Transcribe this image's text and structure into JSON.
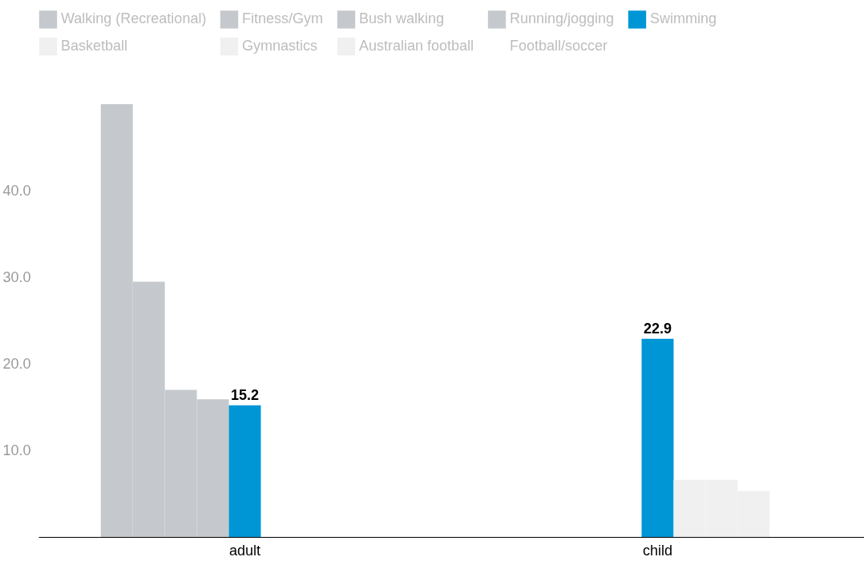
{
  "chart_data": {
    "type": "bar",
    "categories": [
      "adult",
      "child"
    ],
    "series": [
      {
        "name": "Walking (Recreational)",
        "color": "#c5c9cd",
        "values": [
          50,
          null
        ]
      },
      {
        "name": "Fitness/Gym",
        "color": "#c5c9cd",
        "values": [
          29.5,
          null
        ]
      },
      {
        "name": "Bush walking",
        "color": "#c5c9cd",
        "values": [
          17.0,
          null
        ]
      },
      {
        "name": "Running/jogging",
        "color": "#c5c9cd",
        "values": [
          15.9,
          null
        ]
      },
      {
        "name": "Swimming",
        "color": "#0096d6",
        "values": [
          15.2,
          22.9
        ],
        "value_labels": [
          "15.2",
          "22.9"
        ]
      },
      {
        "name": "Basketball",
        "color": "#f0f0f0",
        "values": [
          null,
          6.6
        ]
      },
      {
        "name": "Gymnastics",
        "color": "#f0f0f0",
        "values": [
          null,
          6.6
        ]
      },
      {
        "name": "Australian football",
        "color": "#f0f0f0",
        "values": [
          null,
          5.3
        ]
      },
      {
        "name": "Football/soccer",
        "values": [
          null,
          null
        ]
      }
    ],
    "ylim": [
      0,
      50
    ],
    "yticks": [
      {
        "value": 10,
        "label": "10.0"
      },
      {
        "value": 20,
        "label": "20.0"
      },
      {
        "value": 30,
        "label": "30.0"
      },
      {
        "value": 40,
        "label": "40.0"
      }
    ],
    "grid": false,
    "legend": "top"
  }
}
